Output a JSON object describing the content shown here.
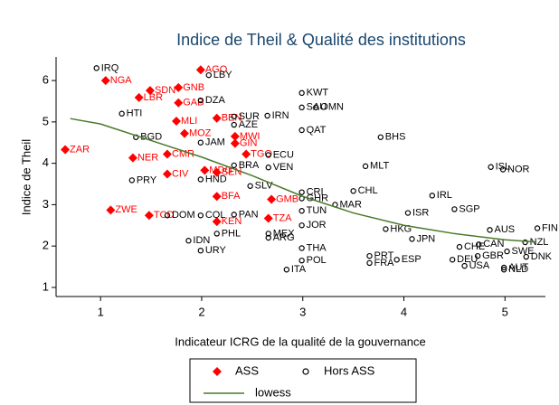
{
  "chart_data": {
    "type": "scatter",
    "title": "Indice de Theil & Qualité des institutions",
    "x_label": "Indicateur ICRG de la qualité de la gouvernance",
    "y_label": "Indice de Theil",
    "xlim": [
      0.56,
      5.4
    ],
    "ylim": [
      0.78,
      6.57
    ],
    "xticks": [
      1,
      2,
      3,
      4,
      5
    ],
    "yticks": [
      1,
      2,
      3,
      4,
      5,
      6
    ],
    "series": [
      {
        "name": "ASS",
        "color": "#ff0000",
        "marker": "diamond",
        "labels": [
          "AGO",
          "NGA",
          "SDN",
          "GNB",
          "LBR",
          "GAB",
          "BEN",
          "MLI",
          "MOZ",
          "MWI",
          "GIN",
          "ZAR",
          "NER",
          "CMR",
          "CIV",
          "TGO",
          "SEN",
          "ZWE",
          "TCD",
          "KEN",
          "TZA",
          "GMB",
          "BFA",
          "MDG"
        ],
        "x": [
          1.99,
          1.05,
          1.49,
          1.77,
          1.38,
          1.77,
          2.15,
          1.75,
          1.83,
          2.33,
          2.33,
          0.65,
          1.32,
          1.66,
          1.66,
          2.44,
          2.15,
          1.1,
          1.48,
          2.15,
          2.66,
          2.69,
          2.15,
          2.03
        ],
        "values": [
          6.26,
          6.0,
          5.76,
          5.83,
          5.59,
          5.46,
          5.09,
          5.02,
          4.72,
          4.65,
          4.48,
          4.33,
          4.13,
          4.22,
          3.74,
          4.22,
          3.78,
          2.87,
          2.74,
          2.59,
          2.67,
          3.13,
          3.2,
          3.83
        ]
      },
      {
        "name": "Hors ASS",
        "color": "#000000",
        "marker": "circle",
        "labels": [
          "IRQ",
          "LBY",
          "DZA",
          "HTI",
          "SUR",
          "IRN",
          "AZE",
          "KWT",
          "SAU",
          "OMN",
          "QAT",
          "BHS",
          "BGD",
          "JAM",
          "MLT",
          "ISL",
          "NOR",
          "PRY",
          "HND",
          "SLV",
          "CHL",
          "IRL",
          "ISR",
          "SGP",
          "MAR",
          "JOR",
          "HKG",
          "AUS",
          "FIN",
          "JPN",
          "CAN",
          "NZL",
          "CHE",
          "SWE",
          "GBR",
          "DNK",
          "DEU",
          "USA",
          "AUT",
          "NLD",
          "FRA",
          "ESP",
          "PRT",
          "ITA",
          "POL",
          "URY",
          "IDN",
          "DOM",
          "COL",
          "PAN",
          "TUN",
          "ECU",
          "CRI",
          "GHR",
          "VEN",
          "BRA",
          "PHL",
          "MEX",
          "ARG",
          "THA"
        ],
        "x": [
          0.96,
          2.07,
          1.99,
          1.21,
          2.32,
          2.65,
          2.32,
          2.99,
          2.99,
          3.13,
          2.99,
          3.77,
          1.35,
          1.99,
          3.62,
          4.86,
          4.98,
          1.31,
          1.99,
          2.48,
          3.5,
          4.28,
          4.04,
          4.5,
          3.32,
          2.99,
          3.82,
          4.85,
          5.32,
          4.08,
          4.74,
          5.2,
          4.55,
          5.02,
          4.73,
          5.21,
          4.48,
          4.6,
          4.99,
          4.99,
          3.66,
          3.93,
          3.66,
          2.84,
          2.99,
          1.99,
          1.87,
          1.66,
          1.99,
          2.32,
          2.99,
          2.66,
          2.99,
          2.99,
          2.66,
          2.32,
          2.15,
          2.66,
          2.66,
          2.99
        ],
        "values": [
          6.3,
          6.13,
          5.52,
          5.2,
          5.13,
          5.15,
          4.93,
          5.7,
          5.35,
          5.35,
          4.8,
          4.63,
          4.63,
          4.5,
          3.93,
          3.91,
          3.85,
          3.59,
          3.61,
          3.45,
          3.33,
          3.22,
          2.8,
          2.89,
          3.0,
          2.5,
          2.41,
          2.39,
          2.43,
          2.17,
          2.04,
          2.09,
          1.98,
          1.87,
          1.76,
          1.74,
          1.67,
          1.52,
          1.48,
          1.43,
          1.59,
          1.67,
          1.76,
          1.43,
          1.65,
          1.89,
          2.13,
          2.74,
          2.74,
          2.76,
          2.85,
          4.2,
          3.3,
          3.15,
          3.9,
          3.95,
          2.3,
          2.3,
          2.2,
          1.95
        ]
      },
      {
        "name": "lowess",
        "color": "#4a7a2a",
        "marker": "line",
        "x": [
          0.7,
          1.0,
          1.5,
          2.0,
          2.5,
          3.0,
          3.5,
          4.0,
          4.5,
          5.0,
          5.3
        ],
        "values": [
          5.08,
          4.95,
          4.55,
          4.15,
          3.7,
          3.2,
          2.8,
          2.5,
          2.3,
          2.15,
          2.1
        ]
      }
    ]
  }
}
